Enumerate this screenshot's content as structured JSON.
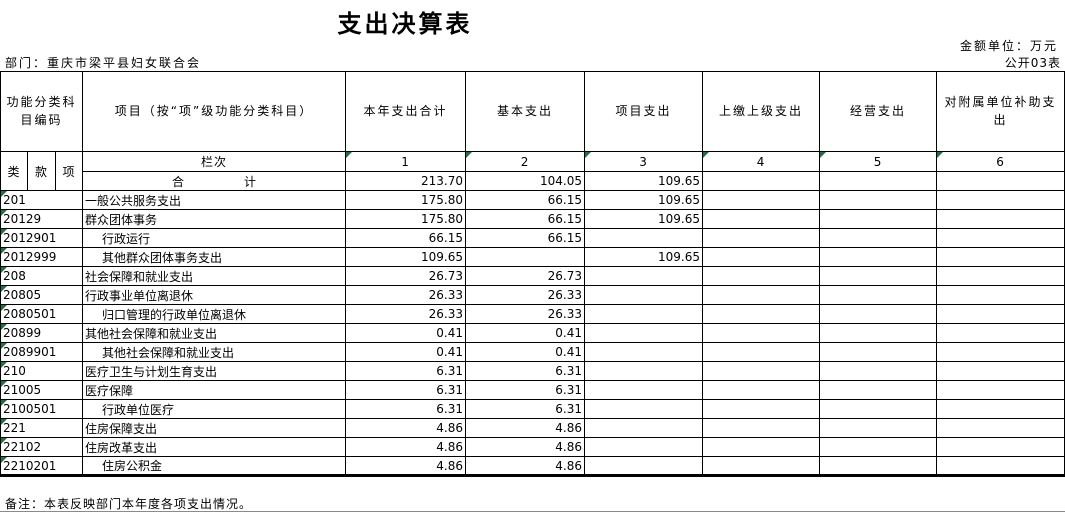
{
  "colors": {
    "triangle": "#1e7145",
    "border": "#000000"
  },
  "header": {
    "title": "支出决算表",
    "unit_label": "金额单位：万元",
    "department": "部门：重庆市梁平县妇女联合会",
    "sheet_label": "公开03表"
  },
  "table": {
    "code_header": "功能分类科目编码",
    "project_header": "项目（按“项”级功能分类科目）",
    "sub_headers": [
      "类",
      "款",
      "项"
    ],
    "lanci_label": "栏次",
    "column_numbers": [
      "1",
      "2",
      "3",
      "4",
      "5",
      "6"
    ],
    "col_headers": [
      "本年支出合计",
      "基本支出",
      "项目支出",
      "上缴上级支出",
      "经营支出",
      "对附属单位补助支出"
    ],
    "total_row": {
      "label": "合　　　　　计",
      "values": [
        "213.70",
        "104.05",
        "109.65",
        "",
        "",
        ""
      ]
    },
    "rows": [
      {
        "code": "201",
        "name": "一般公共服务支出",
        "bold": true,
        "indent": false,
        "values": [
          "175.80",
          "66.15",
          "109.65",
          "",
          "",
          ""
        ]
      },
      {
        "code": "20129",
        "name": "群众团体事务",
        "bold": true,
        "indent": false,
        "values": [
          "175.80",
          "66.15",
          "109.65",
          "",
          "",
          ""
        ]
      },
      {
        "code": "2012901",
        "name": "行政运行",
        "bold": false,
        "indent": true,
        "values": [
          "66.15",
          "66.15",
          "",
          "",
          "",
          ""
        ]
      },
      {
        "code": "2012999",
        "name": "其他群众团体事务支出",
        "bold": false,
        "indent": true,
        "values": [
          "109.65",
          "",
          "109.65",
          "",
          "",
          ""
        ]
      },
      {
        "code": "208",
        "name": "社会保障和就业支出",
        "bold": true,
        "indent": false,
        "values": [
          "26.73",
          "26.73",
          "",
          "",
          "",
          ""
        ]
      },
      {
        "code": "20805",
        "name": "行政事业单位离退休",
        "bold": true,
        "indent": false,
        "values": [
          "26.33",
          "26.33",
          "",
          "",
          "",
          ""
        ]
      },
      {
        "code": "2080501",
        "name": "归口管理的行政单位离退休",
        "bold": false,
        "indent": true,
        "values": [
          "26.33",
          "26.33",
          "",
          "",
          "",
          ""
        ]
      },
      {
        "code": "20899",
        "name": "其他社会保障和就业支出",
        "bold": true,
        "indent": false,
        "values": [
          "0.41",
          "0.41",
          "",
          "",
          "",
          ""
        ]
      },
      {
        "code": "2089901",
        "name": "其他社会保障和就业支出",
        "bold": false,
        "indent": true,
        "values": [
          "0.41",
          "0.41",
          "",
          "",
          "",
          ""
        ]
      },
      {
        "code": "210",
        "name": "医疗卫生与计划生育支出",
        "bold": true,
        "indent": false,
        "values": [
          "6.31",
          "6.31",
          "",
          "",
          "",
          ""
        ]
      },
      {
        "code": "21005",
        "name": "医疗保障",
        "bold": true,
        "indent": false,
        "values": [
          "6.31",
          "6.31",
          "",
          "",
          "",
          ""
        ]
      },
      {
        "code": "2100501",
        "name": "行政单位医疗",
        "bold": false,
        "indent": true,
        "values": [
          "6.31",
          "6.31",
          "",
          "",
          "",
          ""
        ]
      },
      {
        "code": "221",
        "name": "住房保障支出",
        "bold": true,
        "indent": false,
        "values": [
          "4.86",
          "4.86",
          "",
          "",
          "",
          ""
        ]
      },
      {
        "code": "22102",
        "name": "住房改革支出",
        "bold": true,
        "indent": false,
        "values": [
          "4.86",
          "4.86",
          "",
          "",
          "",
          ""
        ]
      },
      {
        "code": "2210201",
        "name": "住房公积金",
        "bold": false,
        "indent": true,
        "values": [
          "4.86",
          "4.86",
          "",
          "",
          "",
          ""
        ]
      }
    ]
  },
  "footer": {
    "note": "备注：本表反映部门本年度各项支出情况。"
  }
}
